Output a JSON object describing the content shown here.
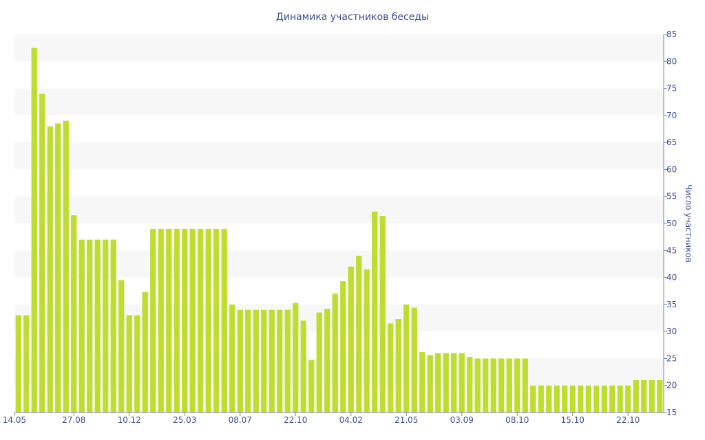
{
  "chart_data": {
    "type": "bar",
    "title": "Динамика участников беседы",
    "xlabel": "",
    "ylabel": "Число участников",
    "ylim": [
      15,
      85
    ],
    "yticks": [
      15,
      20,
      25,
      30,
      35,
      40,
      45,
      50,
      55,
      60,
      65,
      70,
      75,
      80,
      85
    ],
    "y_axis_position": "right",
    "grid": "alternating horizontal bands",
    "x_tick_labels": [
      "14.05",
      "27.08",
      "10.12",
      "25.03",
      "08.07",
      "22.10",
      "04.02",
      "21.05",
      "03.09",
      "08.10",
      "15.10",
      "22.10"
    ],
    "x_tick_positions": [
      0,
      7,
      14,
      21,
      28,
      35,
      42,
      49,
      56,
      63,
      70,
      77
    ],
    "values": [
      33,
      33,
      82.5,
      74,
      68,
      68.5,
      69,
      51.5,
      47,
      47,
      47,
      47,
      47,
      39.5,
      33,
      33,
      37.3,
      49,
      49,
      49,
      49,
      49,
      49,
      49,
      49,
      49,
      49,
      35,
      34,
      34,
      34,
      34,
      34,
      34,
      34,
      35.3,
      32,
      24.7,
      33.5,
      34.2,
      37,
      39.3,
      42,
      44,
      41.5,
      52.2,
      51.4,
      31.5,
      32.3,
      35,
      34.4,
      26.2,
      25.6,
      26,
      26,
      26,
      26,
      25.3,
      25,
      25,
      25,
      25,
      25,
      25,
      25,
      20,
      20,
      20,
      20,
      20,
      20,
      20,
      20,
      20,
      20,
      20,
      20,
      20,
      21,
      21,
      21,
      21
    ],
    "bar_color": "#bedd2e",
    "band_color": "#f7f7f7",
    "text_color": "#3a4f8f"
  }
}
